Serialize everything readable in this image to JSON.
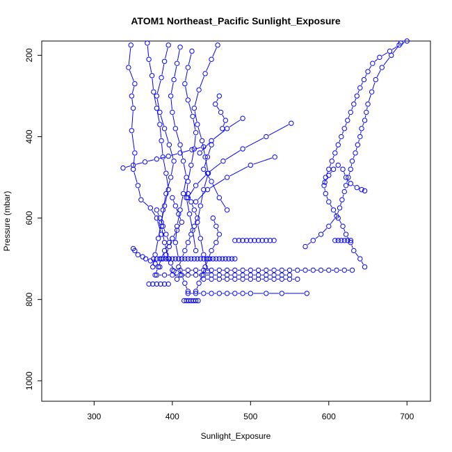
{
  "chart_data": {
    "type": "line",
    "title": "ATOM1 Northeast_Pacific Sunlight_Exposure",
    "xlabel": "Sunlight_Exposure",
    "ylabel": "Pressure (mbar)",
    "xlim": [
      233,
      730
    ],
    "ylim": [
      1050,
      165
    ],
    "y_inverted": true,
    "x_ticks": [
      300,
      400,
      500,
      600,
      700
    ],
    "y_ticks": [
      200,
      400,
      600,
      800,
      1000
    ],
    "grid": false,
    "legend": "none",
    "marker": "open-circle",
    "color": "#0000ff",
    "series": [
      {
        "x": [
          347,
          344,
          352,
          348,
          350,
          348,
          352,
          350,
          356,
          360,
          372,
          380,
          386
        ],
        "y": [
          175,
          230,
          270,
          300,
          330,
          385,
          440,
          480,
          520,
          555,
          575,
          600,
          640
        ]
      },
      {
        "x": [
          368,
          370,
          374,
          376,
          380,
          384,
          386,
          388,
          392,
          395,
          390,
          386,
          382,
          378,
          375
        ],
        "y": [
          170,
          210,
          250,
          290,
          330,
          370,
          410,
          450,
          490,
          530,
          570,
          610,
          650,
          690,
          720
        ]
      },
      {
        "x": [
          395,
          390,
          386,
          380,
          384,
          390,
          396,
          402,
          398,
          392,
          388,
          386,
          390,
          395
        ],
        "y": [
          175,
          215,
          255,
          300,
          340,
          380,
          420,
          460,
          500,
          540,
          580,
          620,
          660,
          700
        ]
      },
      {
        "x": [
          410,
          406,
          402,
          398,
          400,
          404,
          410,
          414,
          418,
          414,
          410,
          406,
          404,
          408
        ],
        "y": [
          180,
          220,
          260,
          300,
          340,
          380,
          420,
          460,
          500,
          540,
          580,
          620,
          660,
          700
        ]
      },
      {
        "x": [
          425,
          420,
          416,
          420,
          426,
          430,
          428,
          424,
          420,
          418,
          422,
          426,
          430
        ],
        "y": [
          190,
          230,
          270,
          310,
          350,
          390,
          430,
          470,
          510,
          550,
          590,
          630,
          680
        ]
      },
      {
        "x": [
          458,
          450,
          442,
          434,
          428,
          432,
          438,
          442,
          446,
          440,
          436,
          432,
          436,
          440,
          445
        ],
        "y": [
          175,
          210,
          245,
          285,
          330,
          370,
          410,
          450,
          490,
          530,
          570,
          610,
          650,
          690,
          730
        ]
      },
      {
        "x": [
          337,
          350,
          365,
          380,
          395,
          410,
          425,
          440
        ],
        "y": [
          477,
          470,
          462,
          455,
          448,
          440,
          432,
          425
        ]
      },
      {
        "x": [
          552,
          520,
          490,
          465,
          445,
          430,
          420
        ],
        "y": [
          367,
          400,
          430,
          460,
          490,
          520,
          550
        ]
      },
      {
        "x": [
          531,
          500,
          470,
          445,
          430
        ],
        "y": [
          450,
          470,
          500,
          530,
          560
        ]
      },
      {
        "x": [
          490,
          470,
          450,
          435
        ],
        "y": [
          355,
          380,
          410,
          440
        ]
      },
      {
        "x": [
          460,
          455,
          462,
          468,
          464
        ],
        "y": [
          300,
          320,
          340,
          360,
          380
        ]
      },
      {
        "x": [
          450,
          445,
          440,
          450,
          460,
          470
        ],
        "y": [
          420,
          450,
          480,
          510,
          550,
          580
        ]
      },
      {
        "x": [
          700,
          690,
          678,
          665,
          656,
          650,
          645,
          640,
          636,
          632,
          628,
          624,
          620,
          616,
          612,
          608,
          604,
          600,
          596,
          594,
          596,
          600,
          606,
          612,
          618,
          622,
          628,
          632,
          640,
          646
        ],
        "y": [
          165,
          175,
          190,
          205,
          220,
          240,
          260,
          280,
          300,
          320,
          340,
          360,
          380,
          400,
          420,
          440,
          460,
          480,
          500,
          520,
          540,
          560,
          580,
          600,
          620,
          640,
          660,
          680,
          700,
          720
        ]
      },
      {
        "x": [
          692,
          680,
          668,
          660,
          655,
          650,
          648,
          646,
          642,
          640,
          637,
          634,
          630,
          628,
          625,
          622,
          620,
          617,
          614,
          610,
          600,
          590,
          580,
          570
        ],
        "y": [
          170,
          200,
          230,
          260,
          290,
          320,
          340,
          360,
          380,
          400,
          420,
          440,
          460,
          480,
          500,
          520,
          535,
          555,
          575,
          595,
          620,
          640,
          655,
          670
        ]
      },
      {
        "x": [
          595,
          600,
          606,
          612,
          618,
          622,
          628,
          636,
          642,
          646
        ],
        "y": [
          512,
          495,
          480,
          470,
          480,
          500,
          515,
          525,
          530,
          533
        ]
      },
      {
        "x": [
          376,
          380,
          384,
          388,
          392,
          396,
          400,
          404,
          408,
          412,
          416,
          420,
          424,
          428,
          432,
          436,
          440,
          444,
          448,
          452,
          456,
          460,
          464,
          468,
          472,
          476,
          480
        ],
        "y": [
          700,
          700,
          700,
          700,
          700,
          700,
          700,
          700,
          700,
          700,
          700,
          700,
          700,
          700,
          700,
          700,
          700,
          700,
          700,
          700,
          700,
          700,
          700,
          700,
          700,
          700,
          700
        ]
      },
      {
        "x": [
          400,
          410,
          420,
          430,
          440,
          450,
          460,
          470,
          480,
          490,
          500,
          510,
          520,
          530,
          540,
          550,
          560,
          570,
          580,
          590,
          600,
          610,
          620,
          630
        ],
        "y": [
          728,
          728,
          728,
          728,
          728,
          728,
          728,
          728,
          728,
          728,
          728,
          728,
          728,
          728,
          728,
          728,
          728,
          728,
          728,
          728,
          728,
          728,
          728,
          728
        ]
      },
      {
        "x": [
          380,
          390,
          400,
          410,
          420,
          430,
          440,
          450,
          460,
          470,
          480,
          490,
          500,
          510,
          520,
          530,
          540,
          550
        ],
        "y": [
          740,
          740,
          740,
          740,
          740,
          740,
          740,
          740,
          740,
          740,
          740,
          740,
          740,
          740,
          740,
          740,
          740,
          740
        ]
      },
      {
        "x": [
          440,
          450,
          460,
          470,
          480,
          490,
          500,
          510,
          520,
          530,
          540,
          550,
          560
        ],
        "y": [
          750,
          750,
          750,
          750,
          750,
          750,
          750,
          750,
          750,
          750,
          750,
          750,
          750
        ]
      },
      {
        "x": [
          480,
          485,
          490,
          495,
          500,
          505,
          510,
          515,
          520,
          525,
          530
        ],
        "y": [
          655,
          655,
          655,
          655,
          655,
          655,
          655,
          655,
          655,
          655,
          655
        ]
      },
      {
        "x": [
          608,
          612,
          616,
          620,
          624,
          628
        ],
        "y": [
          655,
          655,
          655,
          655,
          655,
          655
        ]
      },
      {
        "x": [
          420,
          430,
          440,
          450,
          460,
          470,
          480,
          490,
          500,
          520,
          540,
          572
        ],
        "y": [
          785,
          785,
          785,
          785,
          785,
          785,
          785,
          785,
          785,
          785,
          785,
          785
        ]
      },
      {
        "x": [
          370,
          375,
          380,
          385,
          390,
          395
        ],
        "y": [
          762,
          762,
          762,
          762,
          762,
          762
        ]
      },
      {
        "x": [
          415,
          418,
          421,
          424,
          427,
          430,
          433
        ],
        "y": [
          803,
          803,
          803,
          803,
          803,
          803,
          803
        ]
      },
      {
        "x": [
          350,
          352,
          356,
          362,
          366,
          372,
          378,
          384
        ],
        "y": [
          675,
          680,
          690,
          695,
          700,
          705,
          712,
          720
        ]
      },
      {
        "x": [
          420,
          424,
          428,
          432,
          428,
          424,
          420,
          416,
          412,
          408,
          412,
          416,
          420
        ],
        "y": [
          540,
          560,
          580,
          600,
          620,
          640,
          660,
          680,
          700,
          720,
          740,
          760,
          780
        ]
      },
      {
        "x": [
          400,
          404,
          408,
          412,
          406,
          400,
          396,
          392,
          398,
          402,
          406
        ],
        "y": [
          550,
          570,
          590,
          610,
          630,
          650,
          670,
          690,
          710,
          730,
          750
        ]
      },
      {
        "x": [
          380,
          384,
          388,
          392,
          396,
          390,
          386,
          382,
          378
        ],
        "y": [
          580,
          600,
          620,
          640,
          660,
          680,
          700,
          720,
          740
        ]
      },
      {
        "x": [
          452,
          456,
          460,
          456,
          450,
          446,
          442,
          438,
          434,
          430
        ],
        "y": [
          600,
          620,
          640,
          660,
          680,
          700,
          720,
          740,
          760,
          780
        ]
      }
    ]
  }
}
